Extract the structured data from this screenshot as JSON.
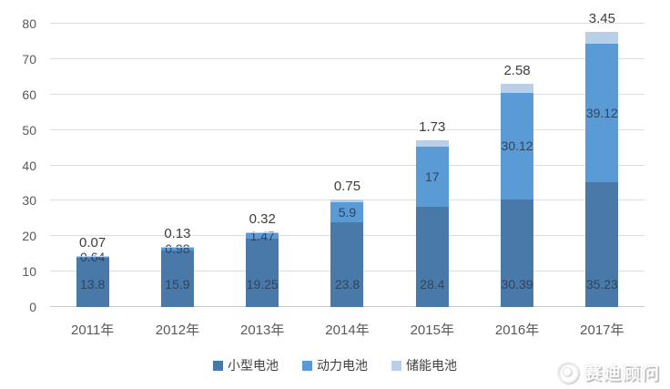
{
  "chart_data": {
    "type": "bar",
    "stacked": true,
    "title": "",
    "xlabel": "",
    "ylabel": "",
    "categories": [
      "2011年",
      "2012年",
      "2013年",
      "2014年",
      "2015年",
      "2016年",
      "2017年"
    ],
    "series": [
      {
        "name": "小型电池",
        "color": "#4879a9",
        "values": [
          13.8,
          15.9,
          19.25,
          23.8,
          28.4,
          30.39,
          35.23
        ]
      },
      {
        "name": "动力电池",
        "color": "#5b9bd5",
        "values": [
          0.64,
          0.98,
          1.47,
          5.9,
          17,
          30.12,
          39.12
        ]
      },
      {
        "name": "储能电池",
        "color": "#b9cfe8",
        "values": [
          0.07,
          0.13,
          0.32,
          0.75,
          1.73,
          2.58,
          3.45
        ]
      }
    ],
    "ylim": [
      0,
      80
    ],
    "yticks": [
      0,
      10,
      20,
      30,
      40,
      50,
      60,
      70,
      80
    ],
    "grid": true,
    "legend_position": "bottom",
    "data_labels": true
  },
  "legend": {
    "items": [
      {
        "label": "小型电池",
        "color": "#4879a9"
      },
      {
        "label": "动力电池",
        "color": "#5b9bd5"
      },
      {
        "label": "储能电池",
        "color": "#b9cfe8"
      }
    ]
  },
  "watermark": {
    "text": "赛迪顾问"
  },
  "colors": {
    "background": "#ffffff",
    "gridline": "#dedede",
    "axis_text": "#595959",
    "label_inside": "#31445e",
    "label_outside": "#3d3d3d"
  }
}
